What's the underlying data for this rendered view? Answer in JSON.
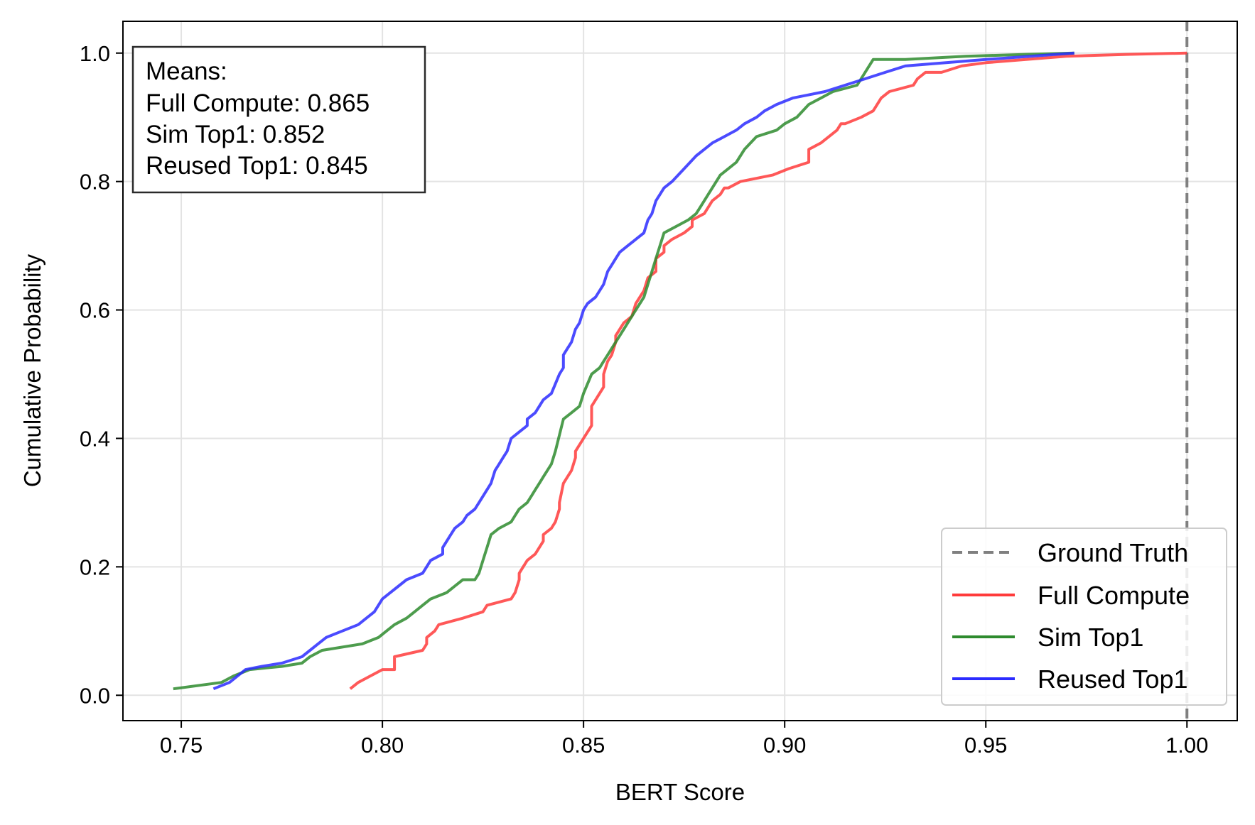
{
  "chart_data": {
    "type": "line",
    "title": "",
    "xlabel": "BERT Score",
    "ylabel": "Cumulative Probability",
    "xlim": [
      0.7355,
      1.0125
    ],
    "ylim": [
      -0.0395,
      1.0495
    ],
    "xticks": [
      0.75,
      0.8,
      0.85,
      0.9,
      0.95,
      1.0
    ],
    "xtick_labels": [
      "0.75",
      "0.80",
      "0.85",
      "0.90",
      "0.95",
      "1.00"
    ],
    "yticks": [
      0.0,
      0.2,
      0.4,
      0.6,
      0.8,
      1.0
    ],
    "ytick_labels": [
      "0.0",
      "0.2",
      "0.4",
      "0.6",
      "0.8",
      "1.0"
    ],
    "grid": true,
    "legend_position": "bottom-right",
    "ground_truth": {
      "name": "Ground Truth",
      "x": 1.0,
      "color": "#808080",
      "style": "dashed"
    },
    "series": [
      {
        "name": "Full Compute",
        "color": "#ff3b3b",
        "x": [
          0.792,
          0.794,
          0.8,
          0.803,
          0.803,
          0.81,
          0.811,
          0.811,
          0.813,
          0.814,
          0.82,
          0.825,
          0.825,
          0.826,
          0.826,
          0.832,
          0.833,
          0.834,
          0.834,
          0.835,
          0.836,
          0.838,
          0.84,
          0.84,
          0.842,
          0.843,
          0.844,
          0.844,
          0.845,
          0.846,
          0.847,
          0.848,
          0.848,
          0.85,
          0.851,
          0.852,
          0.852,
          0.853,
          0.855,
          0.855,
          0.856,
          0.857,
          0.858,
          0.858,
          0.86,
          0.862,
          0.863,
          0.864,
          0.865,
          0.866,
          0.868,
          0.868,
          0.87,
          0.87,
          0.872,
          0.875,
          0.877,
          0.877,
          0.88,
          0.882,
          0.884,
          0.885,
          0.886,
          0.889,
          0.897,
          0.901,
          0.906,
          0.906,
          0.909,
          0.911,
          0.913,
          0.914,
          0.915,
          0.919,
          0.922,
          0.923,
          0.924,
          0.926,
          0.932,
          0.933,
          0.935,
          0.939,
          0.944,
          0.95,
          0.96,
          0.97,
          0.985,
          1.0
        ],
        "y": [
          0.01,
          0.02,
          0.04,
          0.04,
          0.06,
          0.07,
          0.08,
          0.09,
          0.1,
          0.11,
          0.12,
          0.13,
          0.13,
          0.14,
          0.14,
          0.15,
          0.16,
          0.18,
          0.19,
          0.2,
          0.21,
          0.22,
          0.24,
          0.25,
          0.26,
          0.27,
          0.29,
          0.3,
          0.33,
          0.34,
          0.35,
          0.37,
          0.38,
          0.4,
          0.41,
          0.42,
          0.45,
          0.46,
          0.48,
          0.5,
          0.52,
          0.53,
          0.55,
          0.56,
          0.58,
          0.59,
          0.61,
          0.62,
          0.63,
          0.65,
          0.66,
          0.68,
          0.69,
          0.7,
          0.71,
          0.72,
          0.73,
          0.74,
          0.75,
          0.77,
          0.78,
          0.79,
          0.79,
          0.8,
          0.81,
          0.82,
          0.83,
          0.85,
          0.86,
          0.87,
          0.88,
          0.89,
          0.89,
          0.9,
          0.91,
          0.92,
          0.93,
          0.94,
          0.95,
          0.96,
          0.97,
          0.97,
          0.98,
          0.985,
          0.99,
          0.995,
          0.998,
          1.0
        ]
      },
      {
        "name": "Sim Top1",
        "color": "#2e8b2e",
        "x": [
          0.748,
          0.76,
          0.763,
          0.767,
          0.775,
          0.78,
          0.782,
          0.785,
          0.795,
          0.799,
          0.801,
          0.803,
          0.806,
          0.808,
          0.81,
          0.812,
          0.816,
          0.818,
          0.82,
          0.823,
          0.824,
          0.825,
          0.826,
          0.827,
          0.829,
          0.832,
          0.833,
          0.834,
          0.836,
          0.837,
          0.838,
          0.839,
          0.84,
          0.841,
          0.842,
          0.843,
          0.845,
          0.847,
          0.849,
          0.85,
          0.852,
          0.854,
          0.855,
          0.856,
          0.858,
          0.859,
          0.86,
          0.861,
          0.862,
          0.863,
          0.865,
          0.866,
          0.867,
          0.868,
          0.87,
          0.873,
          0.876,
          0.878,
          0.879,
          0.88,
          0.881,
          0.882,
          0.884,
          0.886,
          0.888,
          0.89,
          0.893,
          0.898,
          0.9,
          0.903,
          0.906,
          0.909,
          0.912,
          0.918,
          0.922,
          0.93,
          0.945,
          0.96,
          0.972
        ],
        "y": [
          0.01,
          0.02,
          0.03,
          0.04,
          0.045,
          0.05,
          0.06,
          0.07,
          0.08,
          0.09,
          0.1,
          0.11,
          0.12,
          0.13,
          0.14,
          0.15,
          0.16,
          0.17,
          0.18,
          0.18,
          0.19,
          0.21,
          0.23,
          0.25,
          0.26,
          0.27,
          0.28,
          0.29,
          0.3,
          0.31,
          0.32,
          0.33,
          0.34,
          0.35,
          0.36,
          0.38,
          0.43,
          0.44,
          0.45,
          0.47,
          0.5,
          0.51,
          0.52,
          0.53,
          0.55,
          0.56,
          0.57,
          0.58,
          0.59,
          0.6,
          0.62,
          0.64,
          0.66,
          0.68,
          0.72,
          0.73,
          0.74,
          0.75,
          0.76,
          0.77,
          0.78,
          0.79,
          0.81,
          0.82,
          0.83,
          0.85,
          0.87,
          0.88,
          0.89,
          0.9,
          0.92,
          0.93,
          0.94,
          0.95,
          0.99,
          0.99,
          0.995,
          0.998,
          1.0
        ]
      },
      {
        "name": "Reused Top1",
        "color": "#2b2bff",
        "x": [
          0.758,
          0.762,
          0.764,
          0.766,
          0.77,
          0.775,
          0.78,
          0.782,
          0.784,
          0.786,
          0.79,
          0.794,
          0.796,
          0.798,
          0.8,
          0.802,
          0.804,
          0.806,
          0.81,
          0.812,
          0.815,
          0.815,
          0.817,
          0.818,
          0.82,
          0.821,
          0.823,
          0.824,
          0.826,
          0.827,
          0.828,
          0.829,
          0.83,
          0.831,
          0.832,
          0.834,
          0.836,
          0.836,
          0.838,
          0.839,
          0.84,
          0.842,
          0.844,
          0.845,
          0.845,
          0.846,
          0.847,
          0.848,
          0.849,
          0.85,
          0.851,
          0.853,
          0.855,
          0.856,
          0.857,
          0.858,
          0.859,
          0.861,
          0.863,
          0.865,
          0.866,
          0.867,
          0.868,
          0.869,
          0.87,
          0.872,
          0.875,
          0.878,
          0.88,
          0.882,
          0.885,
          0.888,
          0.89,
          0.893,
          0.895,
          0.898,
          0.902,
          0.91,
          0.915,
          0.92,
          0.925,
          0.93,
          0.95,
          0.972
        ],
        "y": [
          0.01,
          0.02,
          0.03,
          0.04,
          0.045,
          0.05,
          0.06,
          0.07,
          0.08,
          0.09,
          0.1,
          0.11,
          0.12,
          0.13,
          0.15,
          0.16,
          0.17,
          0.18,
          0.19,
          0.21,
          0.22,
          0.23,
          0.25,
          0.26,
          0.27,
          0.28,
          0.29,
          0.3,
          0.32,
          0.33,
          0.35,
          0.36,
          0.37,
          0.38,
          0.4,
          0.41,
          0.42,
          0.43,
          0.44,
          0.45,
          0.46,
          0.47,
          0.5,
          0.51,
          0.53,
          0.54,
          0.55,
          0.57,
          0.58,
          0.6,
          0.61,
          0.62,
          0.64,
          0.66,
          0.67,
          0.68,
          0.69,
          0.7,
          0.71,
          0.72,
          0.74,
          0.75,
          0.77,
          0.78,
          0.79,
          0.8,
          0.82,
          0.84,
          0.85,
          0.86,
          0.87,
          0.88,
          0.89,
          0.9,
          0.91,
          0.92,
          0.93,
          0.94,
          0.95,
          0.96,
          0.97,
          0.98,
          0.99,
          1.0
        ]
      }
    ],
    "annotation": {
      "lines": [
        "Means:",
        "Full Compute: 0.865",
        "Sim Top1: 0.852",
        "Reused Top1: 0.845"
      ],
      "position": "top-left"
    }
  }
}
